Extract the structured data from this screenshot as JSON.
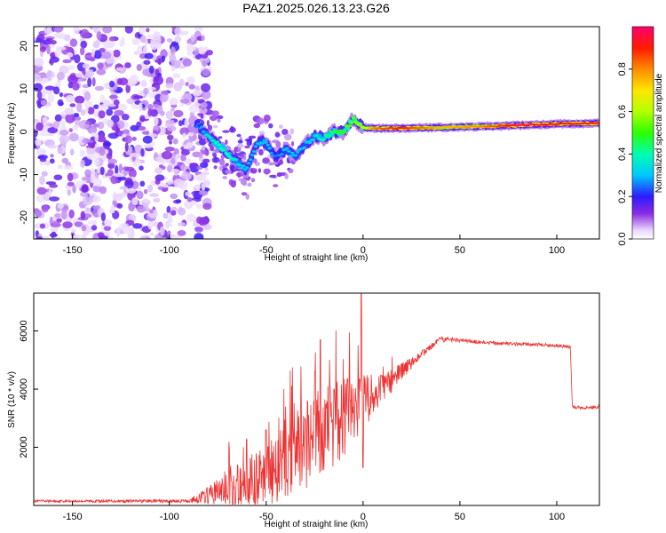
{
  "title": "PAZ1.2025.026.13.23.G26",
  "chart_data": [
    {
      "type": "heatmap",
      "name": "spectrogram",
      "xlabel": "Height of straight line (km)",
      "ylabel": "Frequency (Hz)",
      "xlim": [
        -170,
        122
      ],
      "ylim": [
        -25,
        24.5
      ],
      "xticks": [
        -150,
        -100,
        -50,
        0,
        50,
        100
      ],
      "yticks": [
        -20,
        -10,
        0,
        10,
        20
      ],
      "ridge": {
        "x": [
          -85,
          -80,
          -75,
          -70,
          -65,
          -60,
          -55,
          -52,
          -48,
          -45,
          -40,
          -35,
          -30,
          -25,
          -20,
          -15,
          -10,
          -5,
          0,
          5,
          10,
          20,
          40,
          60,
          80,
          100,
          122
        ],
        "y": [
          1.5,
          -1,
          -3,
          -5,
          -7,
          -9,
          -3,
          -2,
          -4,
          -6,
          -4,
          -6,
          -3,
          -1,
          -1.5,
          0,
          0,
          3,
          1,
          0.8,
          0.8,
          0.8,
          1,
          1.2,
          1.5,
          1.8,
          2
        ],
        "amplitude": [
          0.25,
          0.35,
          0.4,
          0.4,
          0.35,
          0.3,
          0.3,
          0.3,
          0.3,
          0.25,
          0.3,
          0.3,
          0.3,
          0.35,
          0.4,
          0.45,
          0.5,
          0.55,
          0.6,
          0.8,
          0.85,
          0.9,
          0.75,
          0.8,
          0.95,
          0.9,
          0.9
        ]
      },
      "noise_region": [
        -170,
        -85
      ]
    },
    {
      "type": "colorbar",
      "name": "amplitude-colorbar",
      "label": "Normalized spectral amplitude",
      "range": [
        0,
        1
      ],
      "ticks": [
        "0.0",
        "0.2",
        "0.4",
        "0.6",
        "0.8"
      ]
    },
    {
      "type": "line",
      "name": "snr",
      "xlabel": "Height of straight line (km)",
      "ylabel": "SNR (10 * v/v)",
      "xlim": [
        -170,
        122
      ],
      "ylim": [
        0,
        7300
      ],
      "xticks": [
        -150,
        -100,
        -50,
        0,
        50,
        100
      ],
      "yticks": [
        2000,
        4000,
        6000
      ],
      "color": "#ee3333",
      "profile": {
        "x": [
          -170,
          -90,
          -80,
          -70,
          -60,
          -50,
          -40,
          -30,
          -20,
          -10,
          0,
          10,
          20,
          30,
          40,
          50,
          60,
          80,
          100,
          107,
          108,
          115,
          122
        ],
        "base": [
          150,
          150,
          350,
          600,
          800,
          1000,
          1500,
          2000,
          2500,
          3000,
          3500,
          4000,
          4600,
          5200,
          5700,
          5700,
          5600,
          5550,
          5500,
          5450,
          3400,
          3350,
          3400
        ],
        "noise": [
          40,
          60,
          300,
          700,
          900,
          1000,
          1300,
          1600,
          1600,
          1400,
          1000,
          500,
          300,
          120,
          100,
          80,
          70,
          60,
          60,
          60,
          60,
          60,
          60
        ]
      },
      "spikes": [
        {
          "x": -60,
          "y": 2300
        },
        {
          "x": -50,
          "y": 2600
        },
        {
          "x": -40,
          "y": 3400
        },
        {
          "x": -30,
          "y": 3000
        },
        {
          "x": -25,
          "y": 4600
        },
        {
          "x": -22,
          "y": 5700
        },
        {
          "x": -15,
          "y": 4000
        },
        {
          "x": -1,
          "y": 7300
        },
        {
          "x": 0,
          "y": 1300
        }
      ]
    }
  ]
}
